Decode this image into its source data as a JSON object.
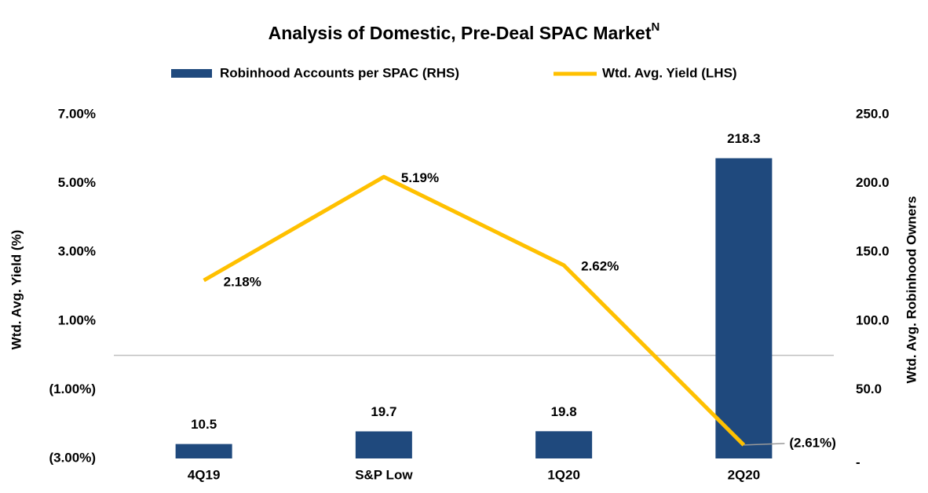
{
  "chart_data": {
    "type": "bar-line",
    "title": "Analysis of Domestic, Pre-Deal SPAC Market",
    "title_superscript": "N",
    "categories": [
      "4Q19",
      "S&P Low",
      "1Q20",
      "2Q20"
    ],
    "series": [
      {
        "name": "Robinhood Accounts per SPAC (RHS)",
        "type": "bar",
        "axis": "y2",
        "color": "#1f497d",
        "values": [
          10.5,
          19.7,
          19.8,
          218.3
        ]
      },
      {
        "name": "Wtd. Avg. Yield (LHS)",
        "type": "line",
        "axis": "y",
        "color": "#ffc000",
        "values": [
          2.18,
          5.19,
          2.62,
          -2.61
        ],
        "value_labels": [
          "2.18%",
          "5.19%",
          "2.62%",
          "(2.61%)"
        ]
      }
    ],
    "y_label": "Wtd. Avg. Yield (%)",
    "y2_label": "Wtd. Avg. Robinhood Owners",
    "ylim": [
      -3,
      7
    ],
    "yticks": [
      {
        "value": -3,
        "label": "(3.00%)"
      },
      {
        "value": -1,
        "label": "(1.00%)"
      },
      {
        "value": 1,
        "label": "1.00%"
      },
      {
        "value": 3,
        "label": "3.00%"
      },
      {
        "value": 5,
        "label": "5.00%"
      },
      {
        "value": 7,
        "label": "7.00%"
      }
    ],
    "y2lim": [
      0,
      250
    ],
    "y2ticks": [
      {
        "value": 0,
        "label": "-"
      },
      {
        "value": 50,
        "label": "50.0"
      },
      {
        "value": 100,
        "label": "100.0"
      },
      {
        "value": 150,
        "label": "150.0"
      },
      {
        "value": 200,
        "label": "200.0"
      },
      {
        "value": 250,
        "label": "250.0"
      }
    ],
    "legend": "top"
  }
}
